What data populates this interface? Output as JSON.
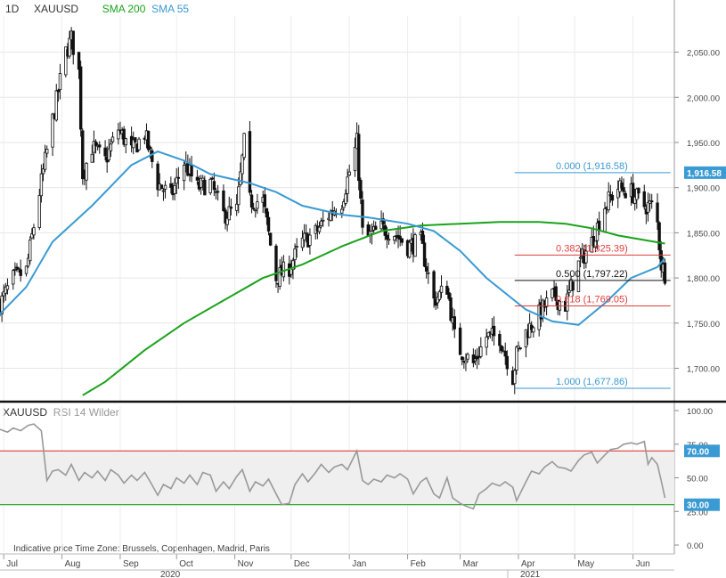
{
  "header": {
    "timeframe": "1D",
    "symbol": "XAUUSD",
    "sma200_label": "SMA 200",
    "sma55_label": "SMA 55"
  },
  "rsi_header": {
    "symbol": "XAUUSD",
    "label": "RSI 14 Wilder"
  },
  "footer": {
    "note": "Indicative price   Time Zone: Brussels, Copenhagen, Madrid, Paris",
    "year_left": "2020",
    "year_right": "2021"
  },
  "colors": {
    "candle": "#111111",
    "sma200": "#1aa31a",
    "sma55": "#3a9ad3",
    "fib_blue": "#3a9ad3",
    "fib_red": "#e03c3c",
    "fib_black": "#111111",
    "rsi_line": "#999999",
    "rsi_band": "#efefef",
    "rsi_upper": "#e03c3c",
    "rsi_lower": "#1aa31a",
    "tag_blue": "#3a9ad3"
  },
  "chart_data": [
    {
      "type": "candlestick",
      "title": "XAUUSD",
      "timeframe": "1D",
      "x_labels": [
        "Jul",
        "Aug",
        "Sep",
        "Oct",
        "Nov",
        "Dec",
        "Jan",
        "Feb",
        "Mar",
        "Apr",
        "May",
        "Jun"
      ],
      "y_ticks": [
        1700,
        1750,
        1800,
        1850,
        1900,
        1950,
        2000,
        2050
      ],
      "y_tick_labels": [
        "1,700.00",
        "1,750.00",
        "1,800.00",
        "1,850.00",
        "1,900.00",
        "1,950.00",
        "2,000.00",
        "2,050.00"
      ],
      "ylim": [
        1664,
        2090
      ],
      "last_price_tag": "1,916.58",
      "close_path": [
        [
          "2020-06-29",
          1771
        ],
        [
          "2020-07-06",
          1799
        ],
        [
          "2020-07-13",
          1808
        ],
        [
          "2020-07-20",
          1895
        ],
        [
          "2020-07-27",
          1975
        ],
        [
          "2020-08-03",
          2050
        ],
        [
          "2020-08-06",
          2065
        ],
        [
          "2020-08-10",
          2028
        ],
        [
          "2020-08-12",
          1915
        ],
        [
          "2020-08-17",
          1945
        ],
        [
          "2020-08-24",
          1930
        ],
        [
          "2020-08-31",
          1965
        ],
        [
          "2020-09-07",
          1940
        ],
        [
          "2020-09-14",
          1960
        ],
        [
          "2020-09-21",
          1905
        ],
        [
          "2020-09-28",
          1890
        ],
        [
          "2020-10-05",
          1928
        ],
        [
          "2020-10-12",
          1900
        ],
        [
          "2020-10-19",
          1905
        ],
        [
          "2020-10-26",
          1870
        ],
        [
          "2020-11-02",
          1875
        ],
        [
          "2020-11-06",
          1950
        ],
        [
          "2020-11-09",
          1885
        ],
        [
          "2020-11-16",
          1885
        ],
        [
          "2020-11-23",
          1800
        ],
        [
          "2020-11-30",
          1812
        ],
        [
          "2020-12-07",
          1840
        ],
        [
          "2020-12-14",
          1850
        ],
        [
          "2020-12-21",
          1870
        ],
        [
          "2020-12-28",
          1885
        ],
        [
          "2021-01-05",
          1950
        ],
        [
          "2021-01-08",
          1850
        ],
        [
          "2021-01-11",
          1845
        ],
        [
          "2021-01-18",
          1855
        ],
        [
          "2021-01-25",
          1850
        ],
        [
          "2021-02-01",
          1835
        ],
        [
          "2021-02-08",
          1840
        ],
        [
          "2021-02-15",
          1775
        ],
        [
          "2021-02-22",
          1790
        ],
        [
          "2021-02-26",
          1735
        ],
        [
          "2021-03-01",
          1720
        ],
        [
          "2021-03-08",
          1705
        ],
        [
          "2021-03-15",
          1735
        ],
        [
          "2021-03-22",
          1735
        ],
        [
          "2021-03-29",
          1690
        ],
        [
          "2021-03-31",
          1715
        ],
        [
          "2021-04-05",
          1740
        ],
        [
          "2021-04-12",
          1760
        ],
        [
          "2021-04-19",
          1780
        ],
        [
          "2021-04-26",
          1770
        ],
        [
          "2021-05-03",
          1815
        ],
        [
          "2021-05-10",
          1840
        ],
        [
          "2021-05-17",
          1880
        ],
        [
          "2021-05-24",
          1900
        ],
        [
          "2021-05-31",
          1895
        ],
        [
          "2021-06-07",
          1880
        ],
        [
          "2021-06-11",
          1880
        ],
        [
          "2021-06-14",
          1860
        ],
        [
          "2021-06-16",
          1815
        ],
        [
          "2021-06-18",
          1805
        ]
      ],
      "series": [
        {
          "name": "SMA 200",
          "points": [
            [
              "2020-08-12",
              1670
            ],
            [
              "2020-08-24",
              1685
            ],
            [
              "2020-09-14",
              1720
            ],
            [
              "2020-10-05",
              1750
            ],
            [
              "2020-10-26",
              1775
            ],
            [
              "2020-11-16",
              1800
            ],
            [
              "2020-12-07",
              1815
            ],
            [
              "2020-12-28",
              1835
            ],
            [
              "2021-01-18",
              1852
            ],
            [
              "2021-02-08",
              1858
            ],
            [
              "2021-03-01",
              1860
            ],
            [
              "2021-03-22",
              1862
            ],
            [
              "2021-04-12",
              1862
            ],
            [
              "2021-04-26",
              1860
            ],
            [
              "2021-05-10",
              1855
            ],
            [
              "2021-05-24",
              1847
            ],
            [
              "2021-06-07",
              1842
            ],
            [
              "2021-06-18",
              1838
            ]
          ]
        },
        {
          "name": "SMA 55",
          "points": [
            [
              "2020-06-29",
              1760
            ],
            [
              "2020-07-13",
              1790
            ],
            [
              "2020-07-27",
              1840
            ],
            [
              "2020-08-17",
              1880
            ],
            [
              "2020-09-07",
              1925
            ],
            [
              "2020-09-21",
              1940
            ],
            [
              "2020-10-05",
              1930
            ],
            [
              "2020-10-19",
              1915
            ],
            [
              "2020-11-09",
              1905
            ],
            [
              "2020-11-23",
              1895
            ],
            [
              "2020-12-07",
              1880
            ],
            [
              "2020-12-28",
              1870
            ],
            [
              "2021-01-11",
              1867
            ],
            [
              "2021-02-01",
              1860
            ],
            [
              "2021-02-15",
              1852
            ],
            [
              "2021-03-01",
              1830
            ],
            [
              "2021-03-15",
              1800
            ],
            [
              "2021-04-05",
              1765
            ],
            [
              "2021-04-19",
              1752
            ],
            [
              "2021-05-03",
              1748
            ],
            [
              "2021-05-17",
              1772
            ],
            [
              "2021-05-31",
              1800
            ],
            [
              "2021-06-14",
              1812
            ],
            [
              "2021-06-18",
              1822
            ]
          ]
        }
      ],
      "fibonacci": {
        "start": "2021-03-30",
        "end": "2021-06-21",
        "levels": [
          {
            "label": "0.000 (1,916.58)",
            "value": 1916.58,
            "color": "blue"
          },
          {
            "label": "0.382 (1,825.39)",
            "value": 1825.39,
            "color": "red"
          },
          {
            "label": "0.500 (1,797.22)",
            "value": 1797.22,
            "color": "black"
          },
          {
            "label": "0.618 (1,769.05)",
            "value": 1769.05,
            "color": "red"
          },
          {
            "label": "1.000 (1,677.86)",
            "value": 1677.86,
            "color": "blue"
          }
        ]
      }
    },
    {
      "type": "line",
      "title": "RSI 14 Wilder",
      "x_labels": [
        "Jul",
        "Aug",
        "Sep",
        "Oct",
        "Nov",
        "Dec",
        "Jan",
        "Feb",
        "Mar",
        "Apr",
        "May",
        "Jun"
      ],
      "y_ticks": [
        0,
        25,
        50,
        75,
        100
      ],
      "y_tick_labels": [
        "0.00",
        "25.00",
        "50.00",
        "75.00",
        "100.00"
      ],
      "ylim": [
        0,
        100
      ],
      "upper_level": 70,
      "lower_level": 30,
      "upper_tag": "70.00",
      "lower_tag": "30.00",
      "series": [
        {
          "points": [
            [
              "2020-06-29",
              86
            ],
            [
              "2020-07-03",
              84
            ],
            [
              "2020-07-06",
              87
            ],
            [
              "2020-07-10",
              85
            ],
            [
              "2020-07-14",
              89
            ],
            [
              "2020-07-17",
              90
            ],
            [
              "2020-07-21",
              85
            ],
            [
              "2020-07-24",
              48
            ],
            [
              "2020-07-27",
              55
            ],
            [
              "2020-07-30",
              56
            ],
            [
              "2020-08-03",
              52
            ],
            [
              "2020-08-06",
              60
            ],
            [
              "2020-08-10",
              48
            ],
            [
              "2020-08-13",
              54
            ],
            [
              "2020-08-17",
              50
            ],
            [
              "2020-08-20",
              55
            ],
            [
              "2020-08-24",
              48
            ],
            [
              "2020-08-27",
              56
            ],
            [
              "2020-08-31",
              52
            ],
            [
              "2020-09-03",
              46
            ],
            [
              "2020-09-07",
              52
            ],
            [
              "2020-09-10",
              48
            ],
            [
              "2020-09-14",
              54
            ],
            [
              "2020-09-17",
              47
            ],
            [
              "2020-09-21",
              37
            ],
            [
              "2020-09-24",
              45
            ],
            [
              "2020-09-28",
              42
            ],
            [
              "2020-10-01",
              50
            ],
            [
              "2020-10-05",
              46
            ],
            [
              "2020-10-08",
              52
            ],
            [
              "2020-10-12",
              45
            ],
            [
              "2020-10-15",
              54
            ],
            [
              "2020-10-19",
              52
            ],
            [
              "2020-10-22",
              40
            ],
            [
              "2020-10-26",
              47
            ],
            [
              "2020-10-29",
              42
            ],
            [
              "2020-11-02",
              51
            ],
            [
              "2020-11-05",
              56
            ],
            [
              "2020-11-09",
              40
            ],
            [
              "2020-11-12",
              47
            ],
            [
              "2020-11-16",
              44
            ],
            [
              "2020-11-19",
              49
            ],
            [
              "2020-11-23",
              38
            ],
            [
              "2020-11-26",
              30
            ],
            [
              "2020-11-30",
              31
            ],
            [
              "2020-12-03",
              45
            ],
            [
              "2020-12-07",
              53
            ],
            [
              "2020-12-10",
              47
            ],
            [
              "2020-12-14",
              54
            ],
            [
              "2020-12-17",
              60
            ],
            [
              "2020-12-21",
              54
            ],
            [
              "2020-12-24",
              58
            ],
            [
              "2020-12-28",
              60
            ],
            [
              "2020-12-31",
              56
            ],
            [
              "2021-01-05",
              70
            ],
            [
              "2021-01-08",
              48
            ],
            [
              "2021-01-11",
              45
            ],
            [
              "2021-01-14",
              49
            ],
            [
              "2021-01-18",
              47
            ],
            [
              "2021-01-21",
              52
            ],
            [
              "2021-01-25",
              50
            ],
            [
              "2021-01-28",
              53
            ],
            [
              "2021-02-01",
              49
            ],
            [
              "2021-02-04",
              38
            ],
            [
              "2021-02-08",
              47
            ],
            [
              "2021-02-11",
              50
            ],
            [
              "2021-02-15",
              38
            ],
            [
              "2021-02-18",
              35
            ],
            [
              "2021-02-22",
              50
            ],
            [
              "2021-02-25",
              35
            ],
            [
              "2021-03-01",
              31
            ],
            [
              "2021-03-04",
              29
            ],
            [
              "2021-03-08",
              27
            ],
            [
              "2021-03-11",
              38
            ],
            [
              "2021-03-15",
              42
            ],
            [
              "2021-03-18",
              46
            ],
            [
              "2021-03-22",
              44
            ],
            [
              "2021-03-25",
              47
            ],
            [
              "2021-03-29",
              43
            ],
            [
              "2021-03-31",
              33
            ],
            [
              "2021-04-05",
              47
            ],
            [
              "2021-04-08",
              55
            ],
            [
              "2021-04-12",
              53
            ],
            [
              "2021-04-15",
              58
            ],
            [
              "2021-04-19",
              62
            ],
            [
              "2021-04-22",
              58
            ],
            [
              "2021-04-26",
              57
            ],
            [
              "2021-04-29",
              55
            ],
            [
              "2021-05-03",
              63
            ],
            [
              "2021-05-06",
              67
            ],
            [
              "2021-05-10",
              69
            ],
            [
              "2021-05-13",
              61
            ],
            [
              "2021-05-17",
              67
            ],
            [
              "2021-05-20",
              71
            ],
            [
              "2021-05-24",
              72
            ],
            [
              "2021-05-27",
              75
            ],
            [
              "2021-05-31",
              76
            ],
            [
              "2021-06-03",
              75
            ],
            [
              "2021-06-07",
              77
            ],
            [
              "2021-06-09",
              60
            ],
            [
              "2021-06-11",
              65
            ],
            [
              "2021-06-14",
              60
            ],
            [
              "2021-06-16",
              48
            ],
            [
              "2021-06-18",
              35
            ]
          ]
        }
      ]
    }
  ]
}
